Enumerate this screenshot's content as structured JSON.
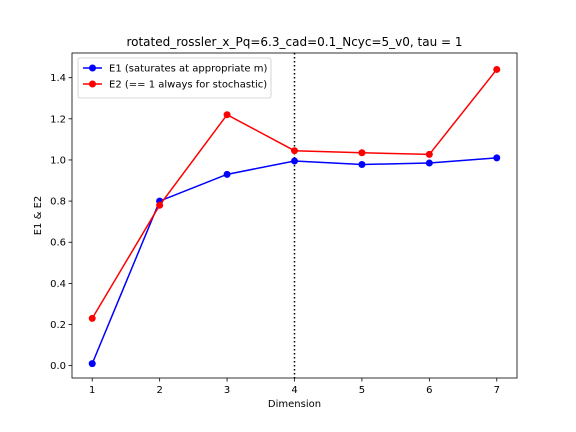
{
  "chart_data": {
    "type": "line",
    "title": "rotated_rossler_x_Pq=6.3_cad=0.1_Ncyc=5_v0, tau = 1",
    "xlabel": "Dimension",
    "ylabel": "E1 & E2",
    "x": [
      1,
      2,
      3,
      4,
      5,
      6,
      7
    ],
    "xlim": [
      0.7,
      7.3
    ],
    "ylim": [
      -0.06,
      1.52
    ],
    "xticks": [
      1,
      2,
      3,
      4,
      5,
      6,
      7
    ],
    "yticks": [
      0.0,
      0.2,
      0.4,
      0.6,
      0.8,
      1.0,
      1.2,
      1.4
    ],
    "grid": false,
    "legend_position": "top-left",
    "vline": {
      "x": 4,
      "style": "dotted",
      "color": "#000000"
    },
    "series": [
      {
        "name": "E1 (saturates at appropriate m)",
        "color": "#0000ff",
        "values": [
          0.01,
          0.8,
          0.93,
          0.995,
          0.978,
          0.985,
          1.01
        ]
      },
      {
        "name": "E2 (== 1 always for stochastic)",
        "color": "#ff0000",
        "values": [
          0.23,
          0.78,
          1.22,
          1.045,
          1.035,
          1.027,
          1.44
        ]
      }
    ]
  }
}
